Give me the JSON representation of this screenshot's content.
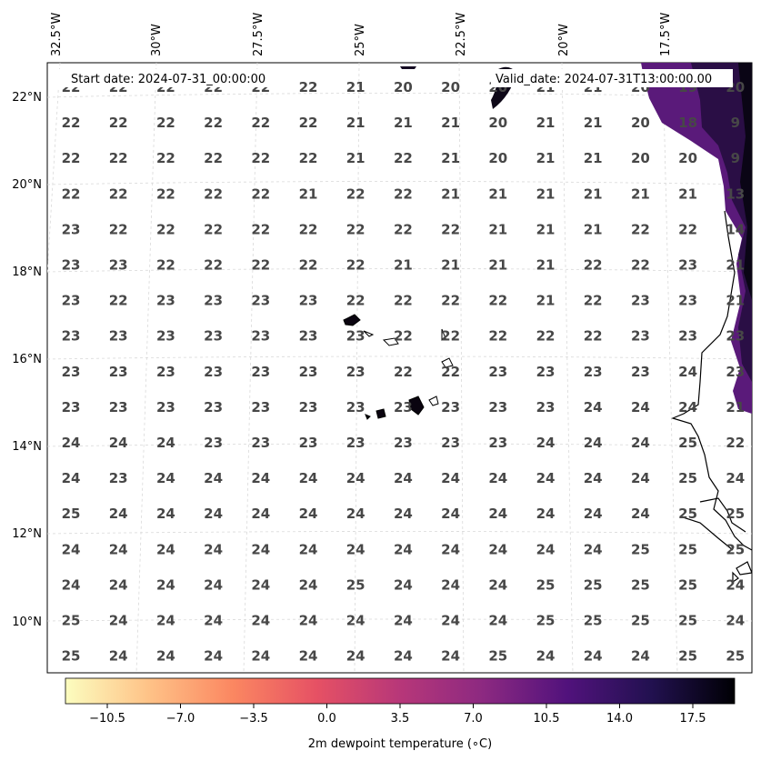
{
  "header": {
    "start_date": "Start date: 2024-07-31_00:00:00",
    "valid_date": "Valid_date: 2024-07-31T13:00:00.00"
  },
  "lon_labels": [
    "32.5°W",
    "30°W",
    "27.5°W",
    "25°W",
    "22.5°W",
    "20°W",
    "17.5°W"
  ],
  "lat_labels": [
    "22°N",
    "20°N",
    "18°N",
    "16°N",
    "14°N",
    "12°N",
    "10°N"
  ],
  "grid_values": [
    [
      "22",
      "22",
      "22",
      "22",
      "22",
      "22",
      "21",
      "20",
      "20",
      "20",
      "21",
      "21",
      "20",
      "19",
      "20"
    ],
    [
      "22",
      "22",
      "22",
      "22",
      "22",
      "22",
      "21",
      "21",
      "21",
      "20",
      "21",
      "21",
      "20",
      "18",
      "9"
    ],
    [
      "22",
      "22",
      "22",
      "22",
      "22",
      "22",
      "21",
      "22",
      "21",
      "20",
      "21",
      "21",
      "20",
      "20",
      "9"
    ],
    [
      "22",
      "22",
      "22",
      "22",
      "22",
      "21",
      "22",
      "22",
      "21",
      "21",
      "21",
      "21",
      "21",
      "21",
      "13"
    ],
    [
      "23",
      "22",
      "22",
      "22",
      "22",
      "22",
      "22",
      "22",
      "22",
      "21",
      "21",
      "21",
      "22",
      "22",
      "14"
    ],
    [
      "23",
      "23",
      "22",
      "22",
      "22",
      "22",
      "22",
      "21",
      "21",
      "21",
      "21",
      "22",
      "22",
      "23",
      "21"
    ],
    [
      "23",
      "22",
      "23",
      "23",
      "23",
      "23",
      "22",
      "22",
      "22",
      "22",
      "21",
      "22",
      "23",
      "23",
      "21"
    ],
    [
      "23",
      "23",
      "23",
      "23",
      "23",
      "23",
      "23",
      "22",
      "22",
      "22",
      "22",
      "22",
      "23",
      "23",
      "23"
    ],
    [
      "23",
      "23",
      "23",
      "23",
      "23",
      "23",
      "23",
      "22",
      "22",
      "23",
      "23",
      "23",
      "23",
      "24",
      "23"
    ],
    [
      "23",
      "23",
      "23",
      "23",
      "23",
      "23",
      "23",
      "23",
      "23",
      "23",
      "23",
      "24",
      "24",
      "24",
      "21"
    ],
    [
      "24",
      "24",
      "24",
      "23",
      "23",
      "23",
      "23",
      "23",
      "23",
      "23",
      "24",
      "24",
      "24",
      "25",
      "22"
    ],
    [
      "24",
      "23",
      "24",
      "24",
      "24",
      "24",
      "24",
      "24",
      "24",
      "24",
      "24",
      "24",
      "24",
      "25",
      "24"
    ],
    [
      "25",
      "24",
      "24",
      "24",
      "24",
      "24",
      "24",
      "24",
      "24",
      "24",
      "24",
      "24",
      "24",
      "25",
      "25"
    ],
    [
      "24",
      "24",
      "24",
      "24",
      "24",
      "24",
      "24",
      "24",
      "24",
      "24",
      "24",
      "24",
      "25",
      "25",
      "25"
    ],
    [
      "24",
      "24",
      "24",
      "24",
      "24",
      "24",
      "25",
      "24",
      "24",
      "24",
      "25",
      "25",
      "25",
      "25",
      "24"
    ],
    [
      "25",
      "24",
      "24",
      "24",
      "24",
      "24",
      "24",
      "24",
      "24",
      "24",
      "25",
      "25",
      "25",
      "25",
      "24"
    ],
    [
      "25",
      "24",
      "24",
      "24",
      "24",
      "24",
      "24",
      "24",
      "24",
      "25",
      "24",
      "24",
      "24",
      "25",
      "25"
    ]
  ],
  "colorbar": {
    "label": "2m dewpoint temperature ($^{\\circ}$C)",
    "label_display": "2m dewpoint temperature (∘C)",
    "ticks": [
      "−10.5",
      "−7.0",
      "−3.5",
      "0.0",
      "3.5",
      "7.0",
      "10.5",
      "14.0",
      "17.5"
    ],
    "min": -12.5,
    "max": 19.5,
    "colormap": "magma_r",
    "stops": [
      "#fcfdbf",
      "#fec287",
      "#fb8761",
      "#e65164",
      "#b73779",
      "#8c2981",
      "#51127c",
      "#221150",
      "#000004"
    ]
  },
  "colors": {
    "coastline": "#000000",
    "gridline": "#cccccc",
    "value_text": "#474747"
  }
}
